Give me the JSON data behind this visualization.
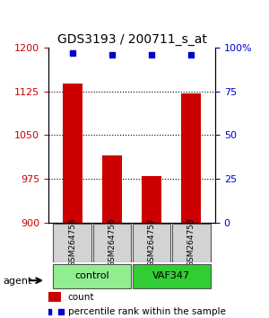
{
  "title": "GDS3193 / 200711_s_at",
  "samples": [
    "GSM264755",
    "GSM264756",
    "GSM264757",
    "GSM264758"
  ],
  "count_values": [
    1138,
    1015,
    980,
    1122
  ],
  "percentile_values": [
    97,
    96,
    96,
    96
  ],
  "ylim_left": [
    900,
    1200
  ],
  "ylim_right": [
    0,
    100
  ],
  "yticks_left": [
    900,
    975,
    1050,
    1125,
    1200
  ],
  "yticks_right": [
    0,
    25,
    50,
    75,
    100
  ],
  "ytick_labels_right": [
    "0",
    "25",
    "50",
    "75",
    "100%"
  ],
  "bar_color": "#cc0000",
  "dot_color": "#0000cc",
  "groups": [
    {
      "label": "control",
      "samples": [
        0,
        1
      ],
      "color": "#90ee90"
    },
    {
      "label": "VAF347",
      "samples": [
        2,
        3
      ],
      "color": "#32cd32"
    }
  ],
  "agent_label": "agent",
  "legend_count_label": "count",
  "legend_pct_label": "percentile rank within the sample",
  "bg_color": "#ffffff",
  "plot_bg_color": "#ffffff",
  "sample_box_color": "#d3d3d3",
  "grid_color": "#000000"
}
